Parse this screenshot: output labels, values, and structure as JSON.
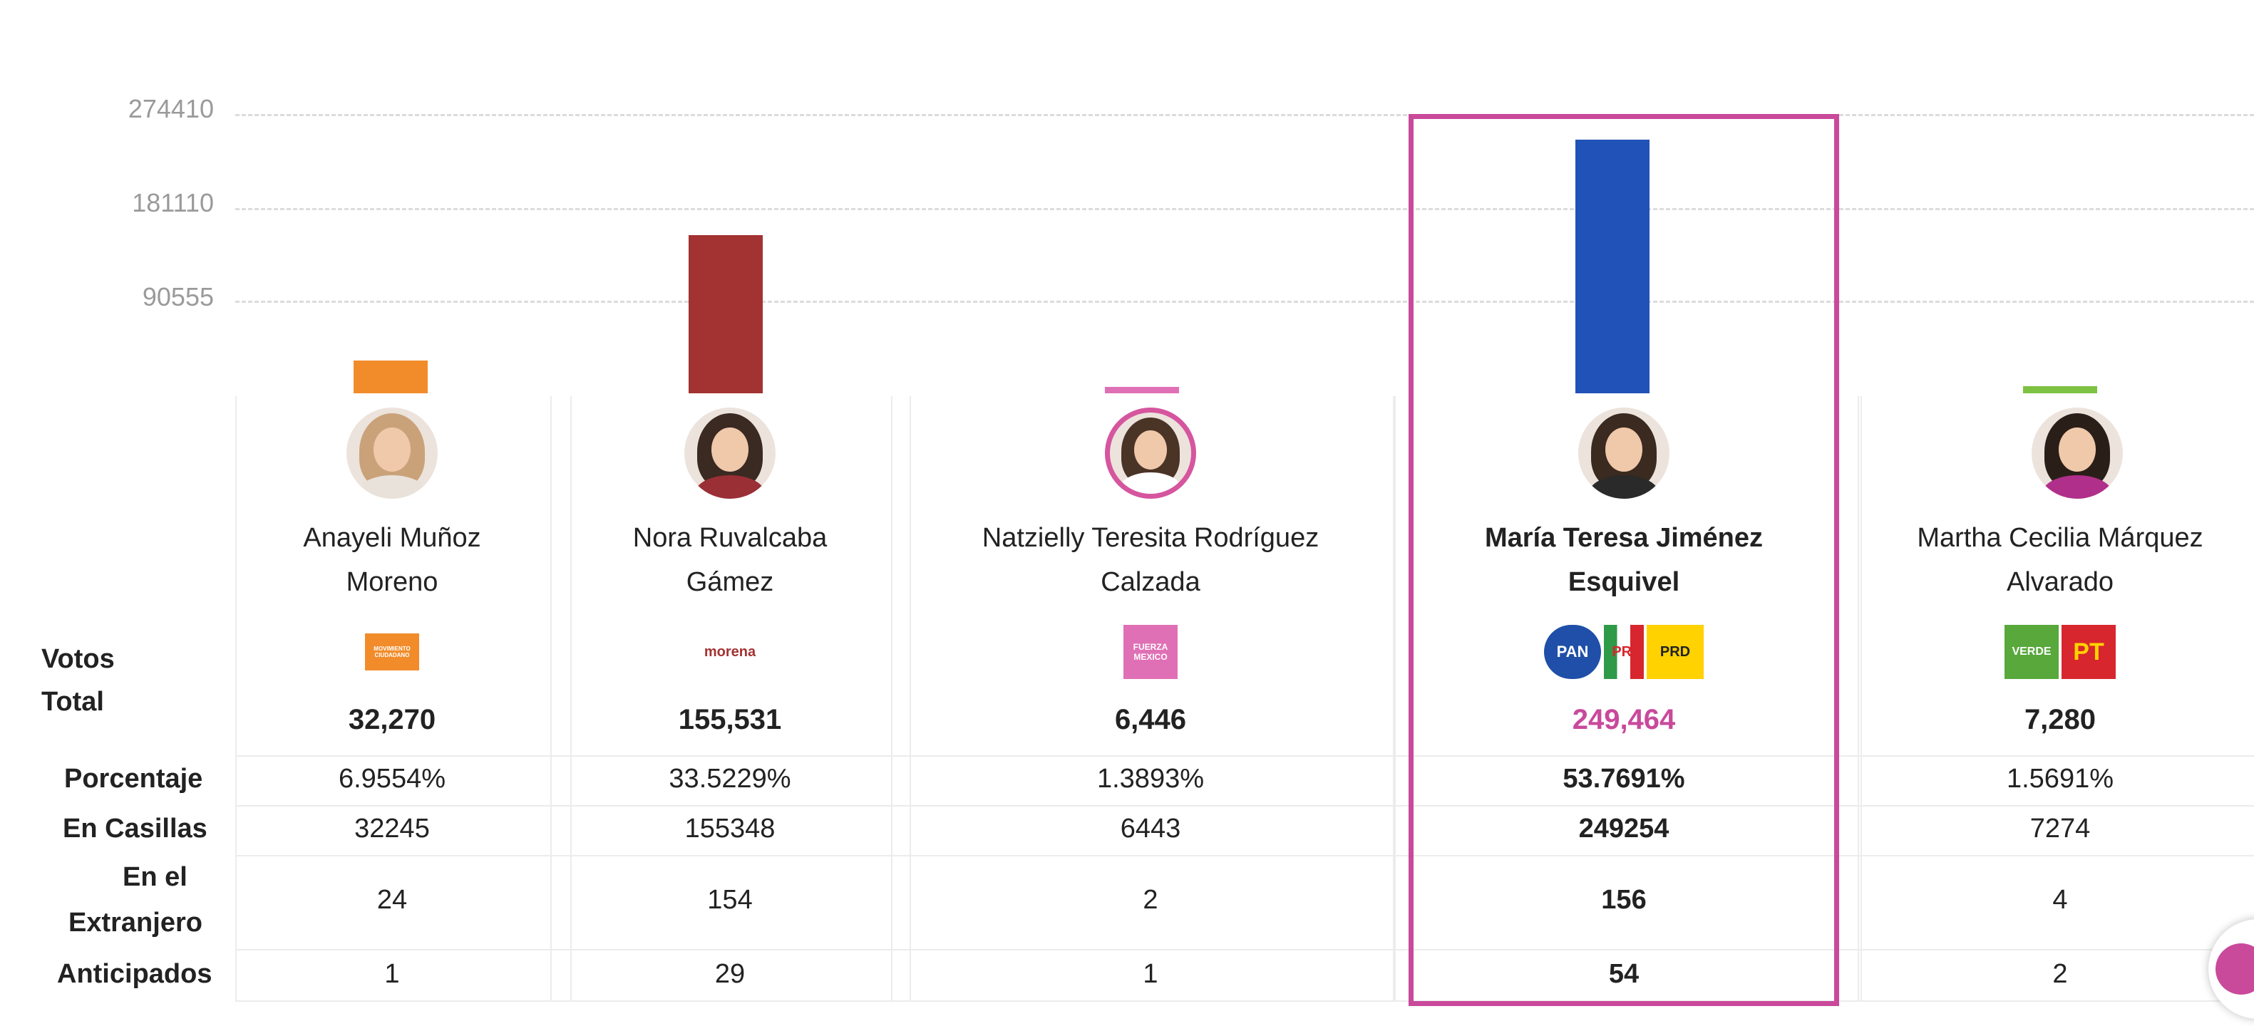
{
  "chart_data": {
    "type": "bar",
    "y_ticks": [
      "274410",
      "181110",
      "90555"
    ],
    "ylim": [
      0,
      274410
    ],
    "categories": [
      "Anayeli Muñoz Moreno",
      "Nora Ruvalcaba Gámez",
      "Natzielly Teresita Rodríguez Calzada",
      "María Teresa Jiménez Esquivel",
      "Martha Cecilia Márquez Alvarado"
    ],
    "values": [
      32270,
      155531,
      6446,
      249464,
      7280
    ],
    "colors": [
      "#f28c2b",
      "#a33232",
      "#e070b5",
      "#2152b7",
      "#7dc242"
    ],
    "highlighted_index": 3,
    "grid": true
  },
  "row_labels": {
    "votos": "Votos",
    "total": "Total",
    "porcentaje": "Porcentaje",
    "casillas": "En Casillas",
    "extranjero_1": "En el",
    "extranjero_2": "Extranjero",
    "anticipados": "Anticipados"
  },
  "candidates": [
    {
      "name_line1": "Anayeli Muñoz",
      "name_line2": "Moreno",
      "total": "32,270",
      "porcentaje": "6.9554%",
      "casillas": "32245",
      "extranjero": "24",
      "anticipados": "1",
      "logos": [
        {
          "icon": "movimiento-ciudadano-logo",
          "text": "MOVIMIENTO CIUDADANO",
          "bg": "#f28c2b",
          "fg": "#ffffff"
        }
      ]
    },
    {
      "name_line1": "Nora Ruvalcaba",
      "name_line2": "Gámez",
      "total": "155,531",
      "porcentaje": "33.5229%",
      "casillas": "155348",
      "extranjero": "154",
      "anticipados": "29",
      "logos": [
        {
          "icon": "morena-logo",
          "text": "morena",
          "bg": "#ffffff",
          "fg": "#a33232"
        }
      ]
    },
    {
      "name_line1": "Natzielly Teresita Rodríguez",
      "name_line2": "Calzada",
      "total": "6,446",
      "porcentaje": "1.3893%",
      "casillas": "6443",
      "extranjero": "2",
      "anticipados": "1",
      "logos": [
        {
          "icon": "fuerza-por-mexico-logo",
          "text": "FUERZA MEXICO",
          "bg": "#e070b5",
          "fg": "#ffffff"
        }
      ]
    },
    {
      "name_line1": "María Teresa Jiménez",
      "name_line2": "Esquivel",
      "total": "249,464",
      "porcentaje": "53.7691%",
      "casillas": "249254",
      "extranjero": "156",
      "anticipados": "54",
      "logos": [
        {
          "icon": "pan-logo",
          "text": "PAN",
          "bg": "#1f4fa8",
          "fg": "#ffffff"
        },
        {
          "icon": "pri-logo",
          "text": "PRI",
          "bg": "#ffffff",
          "fg": "#d7262d"
        },
        {
          "icon": "prd-logo",
          "text": "PRD",
          "bg": "#ffd200",
          "fg": "#222222"
        }
      ]
    },
    {
      "name_line1": "Martha Cecilia Márquez",
      "name_line2": "Alvarado",
      "total": "7,280",
      "porcentaje": "1.5691%",
      "casillas": "7274",
      "extranjero": "4",
      "anticipados": "2",
      "logos": [
        {
          "icon": "partido-verde-logo",
          "text": "VERDE",
          "bg": "#58a83c",
          "fg": "#ffffff"
        },
        {
          "icon": "pt-logo",
          "text": "PT",
          "bg": "#d7262d",
          "fg": "#ffd200"
        }
      ]
    }
  ]
}
